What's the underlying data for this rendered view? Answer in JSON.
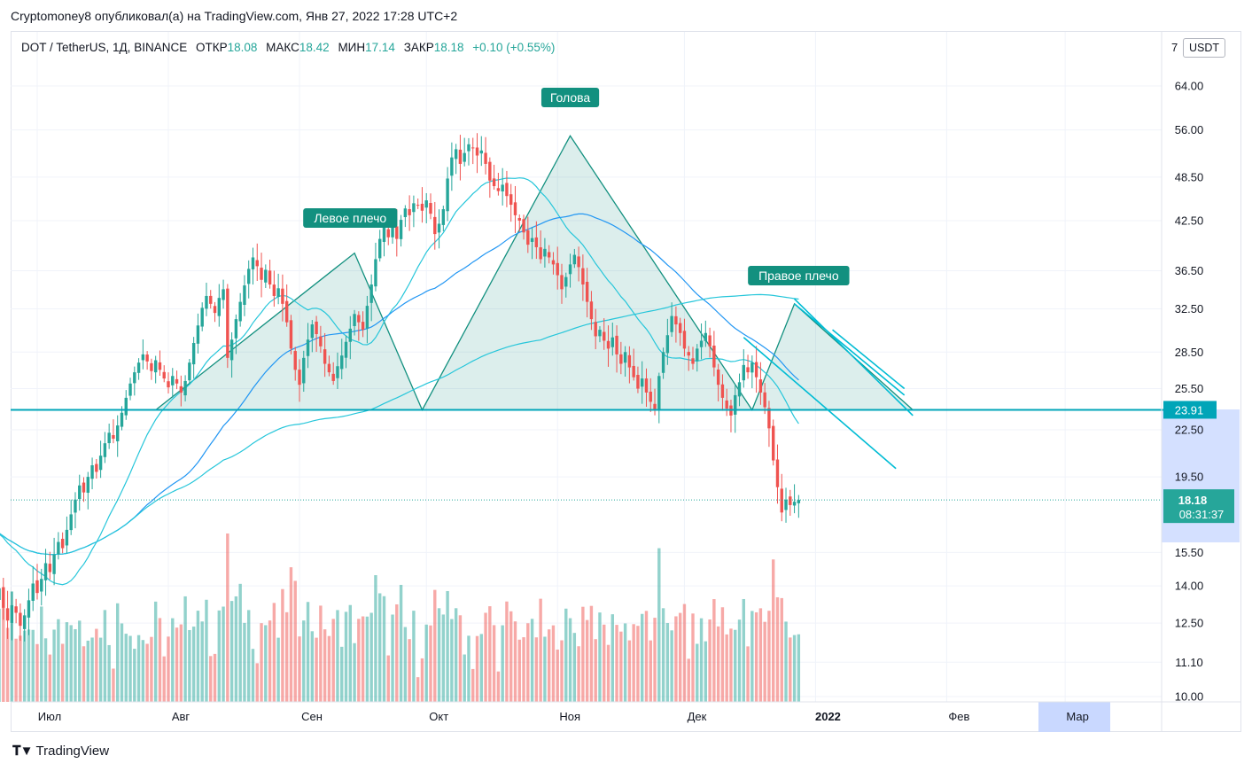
{
  "header": {
    "publish_line": "Cryptomoney8 опубликовал(а) на TradingView.com, Янв 27, 2022 17:28 UTC+2"
  },
  "legend": {
    "symbol": "DOT / TetherUS, 1Д, BINANCE",
    "open_label": "ОТКР",
    "open": "18.08",
    "high_label": "МАКС",
    "high": "18.42",
    "low_label": "МИН",
    "low": "17.14",
    "close_label": "ЗАКР",
    "close": "18.18",
    "change": "+0.10 (+0.55%)"
  },
  "currency": "USDT",
  "scale_top_label": "7",
  "footer": {
    "brand": "TradingView"
  },
  "colors": {
    "up": "#26a69a",
    "down": "#ef5350",
    "pattern": "#12907f",
    "ma_light": "#26c6da",
    "ma_dark": "#2196f3",
    "selection": "#c9d8ff"
  },
  "chart_data": {
    "type": "candlestick",
    "y_scale": "log",
    "y_ticks": [
      "64.00",
      "56.00",
      "48.50",
      "42.50",
      "36.50",
      "32.50",
      "28.50",
      "25.50",
      "22.50",
      "19.50",
      "15.50",
      "14.00",
      "12.50",
      "11.10",
      "10.00"
    ],
    "x_ticks": [
      "Июл",
      "Авг",
      "Сен",
      "Окт",
      "Ноя",
      "Дек",
      "2022",
      "Фев",
      "Мар"
    ],
    "price_labels": {
      "level": "23.91",
      "last": "18.18",
      "countdown": "08:31:37"
    },
    "annotations": [
      "Голова",
      "Левое плечо",
      "Правое плечо"
    ],
    "pattern": {
      "name": "head-and-shoulders",
      "points": [
        {
          "date": "2021-07-29",
          "price": 23.9
        },
        {
          "date": "2021-09-14",
          "price": 38.5
        },
        {
          "date": "2021-09-30",
          "price": 23.9
        },
        {
          "date": "2021-11-04",
          "price": 55.0
        },
        {
          "date": "2021-12-17",
          "price": 23.9
        },
        {
          "date": "2021-12-27",
          "price": 33.0
        },
        {
          "date": "2022-01-24",
          "price": 23.9
        }
      ],
      "neckline": 23.91
    },
    "series": [
      {
        "kind": "ohlc",
        "start": "2021-06-01",
        "close": [
          16.4,
          17.3,
          16.7,
          17.8,
          17.0,
          16.2,
          16.9,
          17.6,
          17.1,
          16.5,
          17.2,
          16.8,
          17.5,
          18.0,
          17.4,
          16.9,
          16.3,
          15.6,
          14.9,
          14.1,
          13.4,
          13.9,
          13.1,
          12.6,
          13.2,
          12.9,
          12.4,
          12.8,
          13.4,
          14.1,
          13.7,
          14.3,
          15.0,
          14.6,
          15.4,
          16.0,
          15.7,
          16.6,
          17.4,
          18.2,
          19.0,
          18.6,
          19.5,
          20.2,
          19.8,
          20.8,
          21.6,
          22.3,
          21.9,
          22.8,
          23.7,
          24.8,
          25.9,
          26.8,
          27.6,
          28.3,
          27.7,
          26.9,
          27.8,
          27.0,
          26.3,
          25.6,
          26.5,
          25.9,
          25.2,
          26.1,
          27.6,
          29.3,
          30.9,
          32.6,
          33.8,
          33.0,
          32.1,
          33.6,
          34.5,
          28.0,
          29.6,
          31.5,
          33.2,
          34.9,
          36.7,
          38.0,
          37.0,
          35.5,
          36.6,
          35.0,
          33.8,
          34.6,
          33.0,
          31.2,
          28.8,
          27.0,
          25.8,
          28.0,
          29.6,
          31.0,
          30.1,
          29.0,
          27.5,
          26.8,
          26.1,
          27.3,
          28.2,
          29.4,
          30.6,
          32.0,
          31.2,
          30.5,
          32.8,
          35.0,
          37.8,
          40.2,
          41.8,
          40.4,
          41.8,
          40.2,
          42.6,
          44.1,
          43.2,
          44.8,
          44.5,
          43.8,
          45.2,
          43.4,
          40.8,
          42.1,
          44.0,
          48.3,
          51.5,
          52.8,
          50.5,
          52.2,
          53.6,
          53.0,
          51.8,
          52.6,
          50.5,
          48.0,
          47.2,
          46.5,
          47.4,
          45.8,
          44.6,
          43.2,
          42.5,
          41.0,
          39.5,
          40.3,
          39.2,
          37.8,
          39.0,
          38.0,
          37.2,
          36.0,
          34.5,
          35.8,
          37.2,
          38.3,
          36.9,
          35.0,
          33.2,
          31.5,
          29.9,
          30.5,
          29.5,
          28.8,
          29.8,
          28.3,
          27.5,
          28.5,
          27.2,
          26.4,
          25.5,
          26.3,
          25.2,
          24.5,
          23.9,
          26.5,
          28.5,
          30.0,
          31.8,
          31.0,
          30.2,
          28.8,
          28.2,
          27.5,
          28.8,
          29.5,
          30.2,
          29.0,
          27.2,
          25.8,
          24.8,
          24.0,
          23.5,
          25.0,
          26.0,
          27.4,
          26.8,
          27.6,
          26.4,
          25.2,
          24.1,
          22.6,
          20.5,
          18.9,
          17.5,
          18.2,
          17.9,
          18.08,
          18.18
        ]
      },
      {
        "name": "MA-fast",
        "kind": "line"
      },
      {
        "name": "MA-slow",
        "kind": "line"
      },
      {
        "name": "MA-long",
        "kind": "line"
      }
    ]
  }
}
